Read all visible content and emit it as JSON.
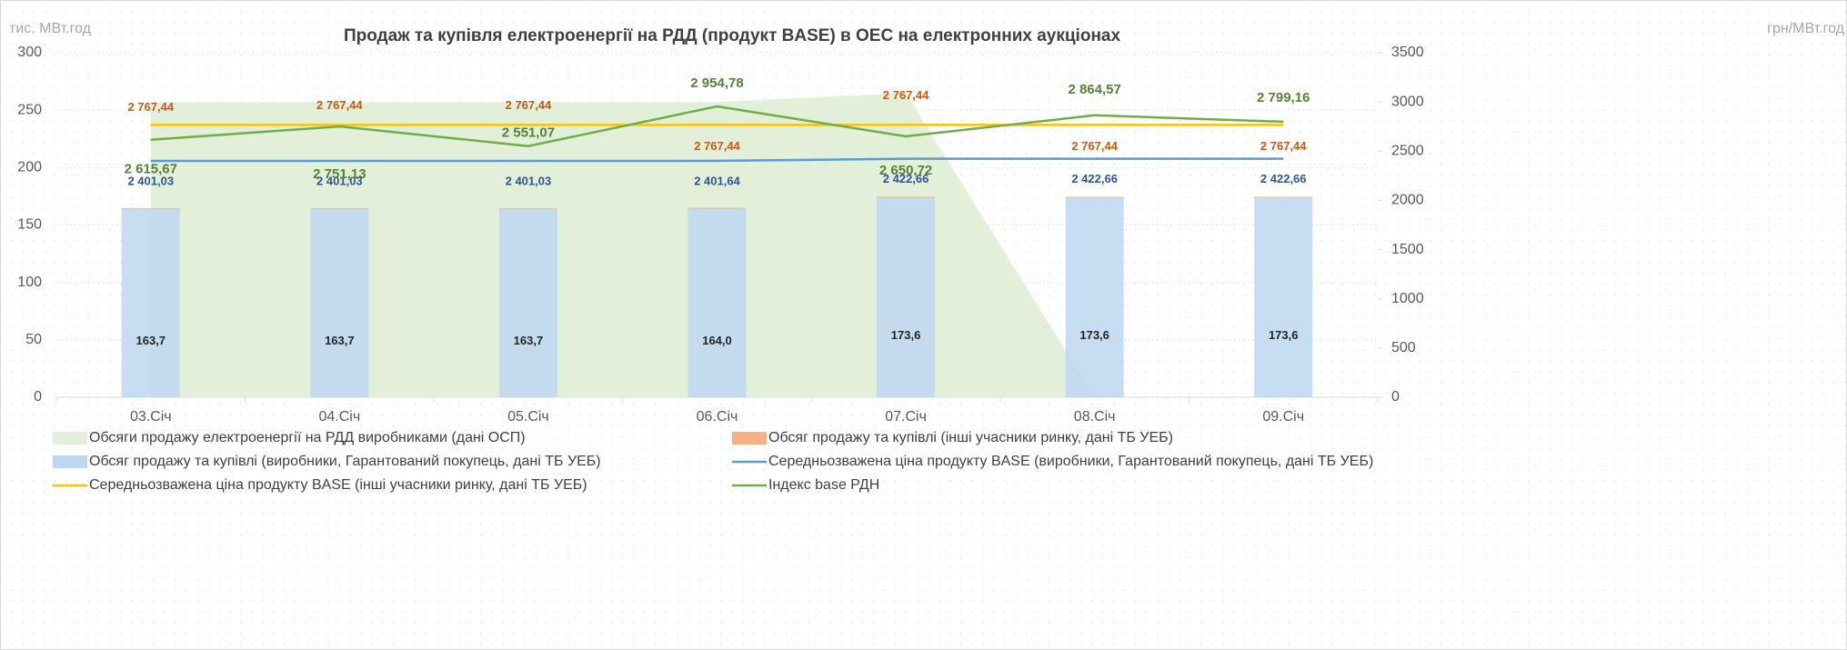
{
  "chart_data": {
    "type": "combo",
    "title": "Продаж та купівля електроенергії на РДД (продукт BASE) в ОЕС на електронних аукціонах",
    "y_label": "тис. МВт.год",
    "y2_label": "грн/МВт.год",
    "categories": [
      "03.Січ",
      "04.Січ",
      "05.Січ",
      "06.Січ",
      "07.Січ",
      "08.Січ",
      "09.Січ"
    ],
    "ylim": [
      0,
      300
    ],
    "yticks": [
      0,
      50,
      100,
      150,
      200,
      250,
      300
    ],
    "y2lim": [
      0,
      3500
    ],
    "y2ticks": [
      0,
      500,
      1000,
      1500,
      2000,
      2500,
      3000,
      3500
    ],
    "grid": true,
    "legend": "bottom",
    "series": [
      {
        "name": "Обсяги продажу електроенергії на РДД виробниками (дані ОСП)",
        "type": "area",
        "color": "#e2efd9",
        "values": [
          257,
          257,
          257,
          257,
          265,
          0,
          0
        ]
      },
      {
        "name": "Обсяг продажу та купівлі (інші учасники ринку, дані ТБ УЕБ)",
        "type": "bar",
        "color": "#f4b183",
        "values": [
          1,
          1,
          1,
          1,
          1,
          1,
          1
        ]
      },
      {
        "name": "Обсяг продажу та купівлі (виробники, Гарантований покупець, дані ТБ УЕБ)",
        "type": "bar",
        "color": "#bdd7ee",
        "values": [
          163.7,
          163.7,
          163.7,
          164.0,
          173.6,
          173.6,
          173.6
        ],
        "value_labels": [
          "163,7",
          "163,7",
          "163,7",
          "164,0",
          "173,6",
          "173,6",
          "173,6"
        ]
      },
      {
        "name": "Середньозважена ціна продукту BASE (виробники, Гарантований покупець, дані ТБ УЕБ)",
        "type": "line",
        "axis": "y2",
        "color": "#5b9bd5",
        "values": [
          2401.03,
          2401.03,
          2401.03,
          2401.64,
          2422.66,
          2422.66,
          2422.66
        ],
        "value_labels": [
          "2 401,03",
          "2 401,03",
          "2 401,03",
          "2 401,64",
          "2 422,66",
          "2 422,66",
          "2 422,66"
        ]
      },
      {
        "name": "Середньозважена ціна продукту BASE (інші учасники ринку,  дані ТБ УЕБ)",
        "type": "line",
        "axis": "y2",
        "color": "#ffc000",
        "values": [
          2767.44,
          2767.44,
          2767.44,
          2767.44,
          2767.44,
          2767.44,
          2767.44
        ],
        "value_labels": [
          "2 767,44",
          "2 767,44",
          "2 767,44",
          "2 767,44",
          "2 767,44",
          "2 767,44",
          "2 767,44"
        ]
      },
      {
        "name": "Індекс base РДН",
        "type": "line",
        "axis": "y2",
        "color": "#70ad47",
        "values": [
          2615.67,
          2751.13,
          2551.07,
          2954.78,
          2650.72,
          2864.57,
          2799.16
        ],
        "value_labels": [
          "2 615,67",
          "2 751,13",
          "2 551,07",
          "2 954,78",
          "2 650,72",
          "2 864,57",
          "2 799,16"
        ]
      }
    ]
  }
}
